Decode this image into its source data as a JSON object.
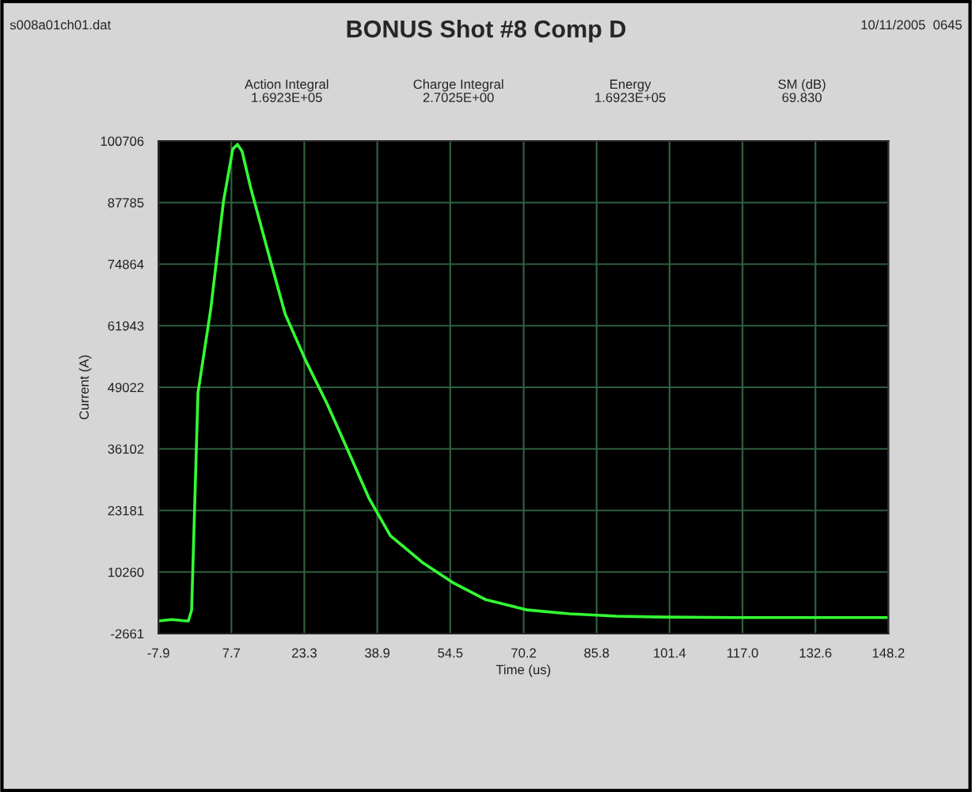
{
  "chart_data": {
    "type": "line",
    "title": "BONUS Shot #8 Comp D",
    "xlabel": "Time (us)",
    "ylabel": "Current (A)",
    "annotations": [
      "s008a01ch01.dat",
      "10/11/2005  0645",
      "Action Integral\n1.6923E+05",
      "Charge Integral\n2.7025E+00",
      "Energy\n1.6923E+05",
      "SM (dB)\n69.830"
    ],
    "series": [
      {
        "color": "#33ff33",
        "x": [
          -7.9,
          -5.0,
          -2.0,
          -1.5,
          -0.8,
          0.56,
          3.3,
          6.0,
          8.0,
          9.0,
          10.0,
          11.8,
          15.8,
          19.2,
          23.7,
          28.2,
          32.7,
          37.2,
          41.7,
          48.5,
          55.3,
          62.0,
          71.0,
          80.0,
          90.0,
          100.0,
          115.0,
          130.0,
          148.2
        ],
        "values": [
          0,
          300,
          0,
          0,
          2300,
          47900,
          65500,
          88000,
          99000,
          100000,
          98500,
          91000,
          76500,
          64400,
          54400,
          45500,
          35600,
          25600,
          17900,
          12300,
          7900,
          4500,
          2300,
          1500,
          1000,
          800,
          700,
          700,
          700
        ]
      }
    ],
    "xlim": [
      -7.9,
      148.2
    ],
    "xticks": [
      -7.9,
      7.7,
      23.3,
      38.9,
      54.5,
      70.2,
      85.8,
      101.4,
      {
        "value": 117.0,
        "label": "117.0"
      },
      132.6,
      148.2
    ],
    "ylim": [
      -2661,
      100706
    ],
    "yticks": [
      -2661,
      10260,
      23181,
      36102,
      49022,
      61943,
      74864,
      87785,
      100706
    ],
    "grid": true,
    "marker": "none",
    "line_style": "solid"
  }
}
